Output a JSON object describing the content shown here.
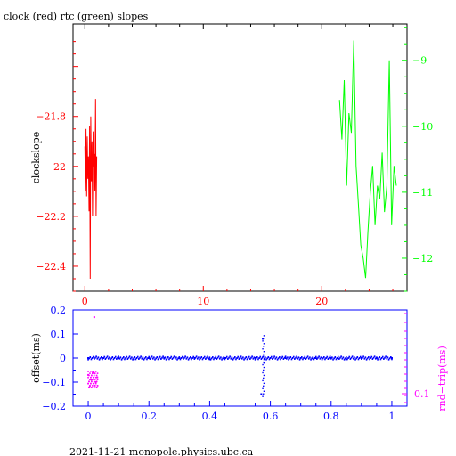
{
  "page": {
    "title": "clock (red) rtc (green) slopes",
    "footer": "2021-11-21  monopole.physics.ubc.ca"
  },
  "colors": {
    "red": "#ff0000",
    "green": "#00ff00",
    "blue": "#0000ff",
    "magenta": "#ff00ff",
    "black": "#000000"
  },
  "chart_data": [
    {
      "type": "line",
      "title": "clock (red) rtc (green) slopes",
      "ylabel": "clockslope",
      "xlim": [
        -1,
        27.2
      ],
      "ylim_left": [
        -22.5,
        -21.43
      ],
      "ylim_right": [
        -12.5,
        -8.45
      ],
      "x_ticks": [
        0,
        10,
        20
      ],
      "y_ticks_left": [
        -21.8,
        -22,
        -22.2,
        -22.4
      ],
      "y_ticks_left_labels": [
        "−21.8",
        "−22",
        "−22.2",
        "−22.4"
      ],
      "y_ticks_right": [
        -9,
        -10,
        -11,
        -12
      ],
      "y_ticks_right_labels": [
        "−9",
        "−10",
        "−11",
        "−12"
      ],
      "series": [
        {
          "axis": "left",
          "color": "red",
          "x": [
            0.0,
            0.05,
            0.1,
            0.15,
            0.2,
            0.25,
            0.3,
            0.35,
            0.4,
            0.45,
            0.5,
            0.55,
            0.6,
            0.65,
            0.7,
            0.75,
            0.8,
            0.85,
            0.9,
            0.95,
            1.0
          ],
          "y": [
            -21.92,
            -22.1,
            -21.85,
            -22.12,
            -21.88,
            -22.05,
            -21.96,
            -22.18,
            -21.84,
            -22.45,
            -21.8,
            -22.06,
            -21.9,
            -22.2,
            -21.86,
            -22.0,
            -21.95,
            -22.1,
            -21.73,
            -22.2,
            -21.96
          ]
        },
        {
          "axis": "right",
          "color": "green",
          "x": [
            21.5,
            21.7,
            21.9,
            22.1,
            22.3,
            22.5,
            22.7,
            22.9,
            23.1,
            23.3,
            23.5,
            23.7,
            23.9,
            24.1,
            24.3,
            24.5,
            24.7,
            24.9,
            25.1,
            25.3,
            25.5,
            25.7,
            25.9,
            26.1,
            26.3
          ],
          "y": [
            -9.6,
            -10.2,
            -9.3,
            -10.9,
            -9.8,
            -10.1,
            -8.7,
            -10.6,
            -11.2,
            -11.8,
            -12.0,
            -12.3,
            -11.6,
            -11.0,
            -10.6,
            -11.5,
            -10.9,
            -11.1,
            -10.4,
            -11.3,
            -10.9,
            -9.0,
            -11.5,
            -10.6,
            -10.9
          ]
        }
      ]
    },
    {
      "type": "scatter",
      "ylabel": "offset(ms)",
      "ylabel_right": "rnd−trip(ms)",
      "xlim": [
        -0.05,
        1.05
      ],
      "ylim": [
        -0.2,
        0.2
      ],
      "x_ticks": [
        0,
        0.2,
        0.4,
        0.6,
        0.8,
        1
      ],
      "x_ticks_labels": [
        "0",
        "0.2",
        "0.4",
        "0.6",
        "0.8",
        "1"
      ],
      "y_ticks": [
        0.2,
        0.1,
        0,
        -0.1,
        -0.2
      ],
      "y_ticks_labels": [
        "0.2",
        "0.1",
        "0",
        "−0.1",
        "−0.2"
      ],
      "y_ticks_right_labels": [
        "0.1"
      ],
      "series": [
        {
          "name": "offset(ms)",
          "color": "blue",
          "x": [
            0.0,
            0.05,
            0.1,
            0.15,
            0.2,
            0.25,
            0.3,
            0.35,
            0.4,
            0.45,
            0.5,
            0.55,
            0.57,
            0.575,
            0.58,
            0.6,
            0.65,
            0.7,
            0.75,
            0.8,
            0.85,
            0.9,
            0.95,
            1.0
          ],
          "y": [
            0.0,
            0.0,
            0.0,
            -0.005,
            0.0,
            0.0,
            0.0,
            0.0,
            -0.005,
            0.0,
            0.0,
            0.0,
            -0.15,
            0.08,
            -0.02,
            0.0,
            0.0,
            0.0,
            0.0,
            0.0,
            -0.005,
            0.0,
            0.0,
            0.0
          ]
        },
        {
          "name": "rnd−trip(ms)",
          "color": "magenta",
          "x": [
            0.0,
            0.005,
            0.01,
            0.015,
            0.02,
            0.025,
            0.03
          ],
          "y": [
            -0.07,
            -0.12,
            -0.09,
            -0.06,
            0.17,
            -0.1,
            -0.08
          ]
        }
      ]
    }
  ]
}
